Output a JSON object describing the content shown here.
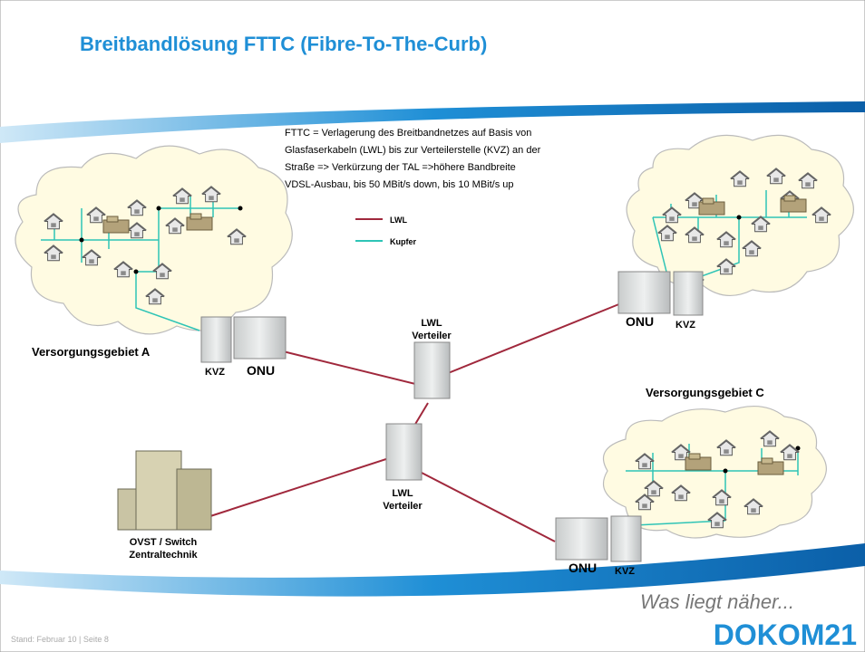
{
  "header": {
    "title": "Breitbandlösung FTTC (Fibre-To-The-Curb)"
  },
  "description": [
    "FTTC = Verlagerung des Breitbandnetzes auf Basis von",
    "Glasfaserkabeln (LWL) bis zur Verteilerstelle (KVZ) an der",
    "Straße => Verkürzung der TAL =>höhere Bandbreite",
    "VDSL-Ausbau, bis 50 MBit/s down, bis 10 MBit/s up"
  ],
  "legend": [
    {
      "label": "LWL",
      "color": "#a0283c"
    },
    {
      "label": "Kupfer",
      "color": "#2ec4b6"
    }
  ],
  "areas": [
    {
      "label": "Versorgungsgebiet A"
    },
    {
      "label": "Versorgungsgebiet C"
    }
  ],
  "nodes": [
    {
      "label": "KVZ"
    },
    {
      "label": "ONU"
    },
    {
      "label": "ONU"
    },
    {
      "label": "KVZ"
    },
    {
      "label": "ONU"
    },
    {
      "label": "KVZ"
    },
    {
      "label": [
        "LWL",
        "Verteiler"
      ]
    },
    {
      "label": [
        "LWL",
        "Verteiler"
      ]
    },
    {
      "label": [
        "OVST / Switch",
        "Zentraltechnik"
      ]
    }
  ],
  "footer": {
    "page": "Stand: Februar 10 | Seite 8",
    "slogan": "Was liegt näher...",
    "logo": "DOKOM21"
  }
}
